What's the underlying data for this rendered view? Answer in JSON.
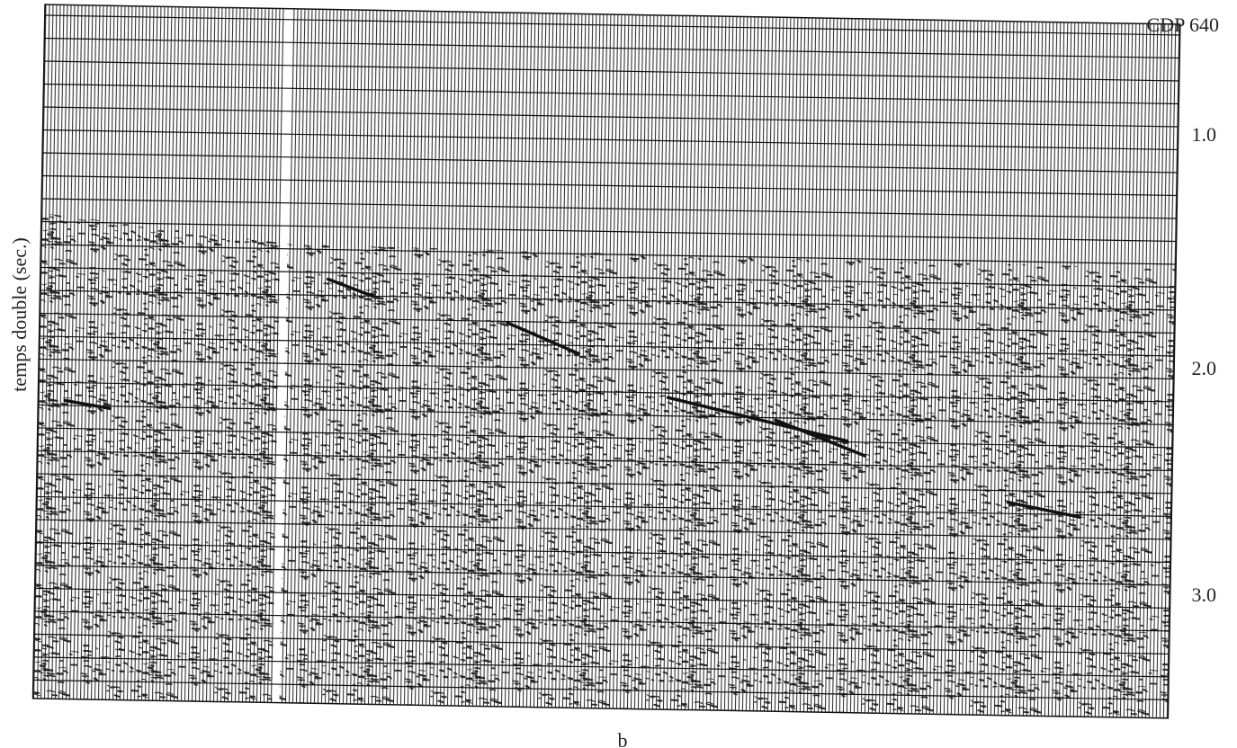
{
  "figure": {
    "trace_label": "CDP 640",
    "axis_label": "temps double (sec.)",
    "time_ticks": [
      "1.0",
      "2.0",
      "3.0"
    ],
    "panel_label": "b"
  }
}
